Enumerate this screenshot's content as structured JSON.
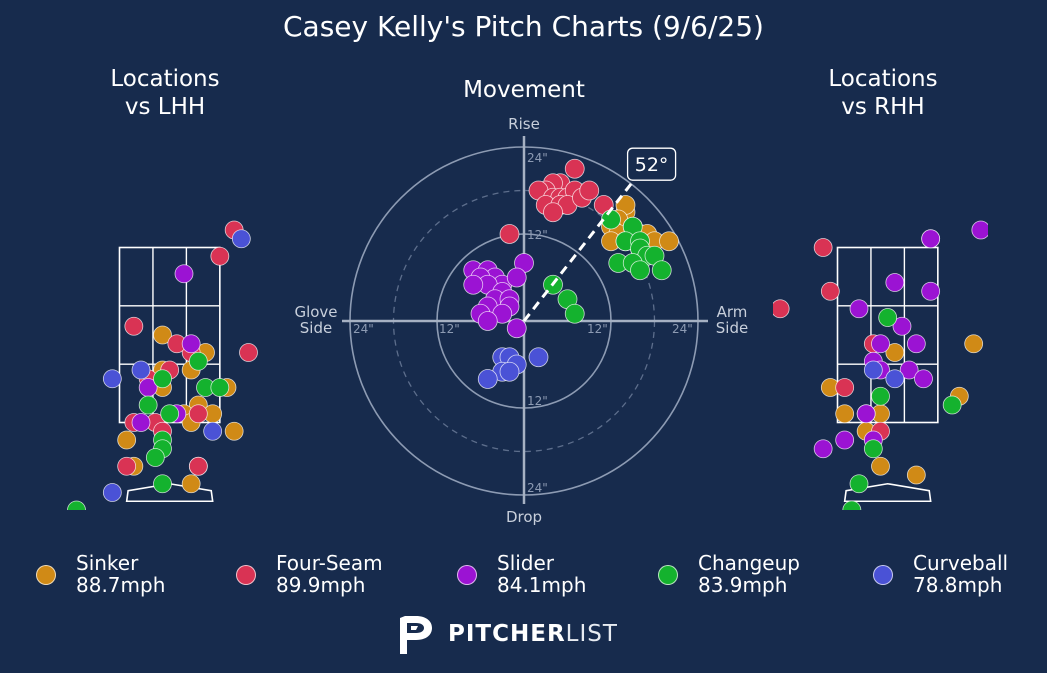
{
  "title": "Casey Kelly's Pitch Charts (9/6/25)",
  "panels": {
    "lhh_title": [
      "Locations",
      "vs LHH"
    ],
    "movement_title": "Movement",
    "rhh_title": [
      "Locations",
      "vs RHH"
    ]
  },
  "colors": {
    "background": "#172b4d",
    "Sinker": "#d08a16",
    "Four-Seam": "#d93354",
    "Slider": "#9b13d3",
    "Changeup": "#14b22e",
    "Curveball": "#4a52d6"
  },
  "legend": [
    {
      "pitch": "Sinker",
      "velo": "88.7mph"
    },
    {
      "pitch": "Four-Seam",
      "velo": "89.9mph"
    },
    {
      "pitch": "Slider",
      "velo": "84.1mph"
    },
    {
      "pitch": "Changeup",
      "velo": "83.9mph"
    },
    {
      "pitch": "Curveball",
      "velo": "78.8mph"
    }
  ],
  "movement_labels": {
    "top": "Rise",
    "bottom": "Drop",
    "left": [
      "Glove",
      "Side"
    ],
    "right": [
      "Arm",
      "Side"
    ],
    "ring_labels": [
      "12\"",
      "24\""
    ],
    "arm_angle_label": "52°"
  },
  "logo": {
    "bold": "PITCHER",
    "light": "LIST"
  },
  "chart_data": [
    {
      "type": "scatter",
      "title": "Locations vs LHH",
      "units": "feet (catcher view, x = plate side, z = height)",
      "xlim": [
        -1.6,
        1.4
      ],
      "ylim": [
        0.5,
        4.5
      ],
      "points": {
        "Sinker": [
          [
            -0.1,
            2.5
          ],
          [
            0.4,
            1.7
          ],
          [
            0.5,
            2.3
          ],
          [
            -0.1,
            2.1
          ],
          [
            -0.1,
            1.9
          ],
          [
            0.2,
            1.6
          ],
          [
            0.3,
            1.5
          ],
          [
            0.8,
            1.9
          ],
          [
            0.6,
            1.6
          ],
          [
            -0.5,
            1.0
          ],
          [
            -0.6,
            1.3
          ],
          [
            0.3,
            0.8
          ],
          [
            0.4,
            1.0
          ],
          [
            0.9,
            1.4
          ],
          [
            0.3,
            2.1
          ]
        ],
        "Four-Seam": [
          [
            0.9,
            3.7
          ],
          [
            0.7,
            3.4
          ],
          [
            -0.5,
            2.6
          ],
          [
            0.3,
            2.3
          ],
          [
            0.1,
            2.4
          ],
          [
            -0.3,
            2.0
          ],
          [
            1.1,
            2.3
          ],
          [
            0.4,
            1.6
          ],
          [
            -0.5,
            1.5
          ],
          [
            -0.2,
            1.5
          ],
          [
            0.4,
            1.0
          ],
          [
            -0.6,
            1.0
          ],
          [
            -0.1,
            1.4
          ],
          [
            0.0,
            2.1
          ]
        ],
        "Slider": [
          [
            0.2,
            3.2
          ],
          [
            0.3,
            2.4
          ],
          [
            -0.3,
            1.9
          ],
          [
            -0.4,
            1.5
          ],
          [
            0.1,
            1.6
          ]
        ],
        "Changeup": [
          [
            0.4,
            2.2
          ],
          [
            0.5,
            1.9
          ],
          [
            0.7,
            1.9
          ],
          [
            -0.1,
            2.0
          ],
          [
            -0.3,
            1.7
          ],
          [
            0.0,
            1.6
          ],
          [
            -0.1,
            1.3
          ],
          [
            -0.1,
            1.2
          ],
          [
            -0.2,
            1.1
          ],
          [
            -0.1,
            0.8
          ],
          [
            -1.3,
            0.5
          ]
        ],
        "Curveball": [
          [
            1.0,
            3.6
          ],
          [
            -0.8,
            2.0
          ],
          [
            -0.4,
            2.1
          ],
          [
            0.6,
            1.4
          ],
          [
            -0.8,
            0.7
          ]
        ]
      }
    },
    {
      "type": "scatter",
      "title": "Movement",
      "units": "inches (x: negative = glove side, positive = arm side; y: rise)",
      "radial_rings": [
        12,
        24
      ],
      "arm_angle_deg": 52,
      "points": {
        "Four-Seam": [
          [
            7,
            21
          ],
          [
            5,
            19
          ],
          [
            4,
            19
          ],
          [
            3,
            18
          ],
          [
            2,
            18
          ],
          [
            4,
            17
          ],
          [
            5,
            17
          ],
          [
            6,
            17
          ],
          [
            7,
            18
          ],
          [
            3,
            16
          ],
          [
            5,
            16
          ],
          [
            6,
            16
          ],
          [
            4,
            15
          ],
          [
            8,
            17
          ],
          [
            9,
            18
          ],
          [
            11,
            16
          ],
          [
            -2,
            12
          ]
        ],
        "Sinker": [
          [
            14,
            15
          ],
          [
            14,
            16
          ],
          [
            13,
            14
          ],
          [
            12,
            13
          ],
          [
            13,
            12
          ],
          [
            15,
            13
          ],
          [
            16,
            12
          ],
          [
            17,
            12
          ],
          [
            18,
            11
          ],
          [
            20,
            11
          ],
          [
            12,
            11
          ],
          [
            14,
            11
          ],
          [
            16,
            10
          ]
        ],
        "Changeup": [
          [
            12,
            14
          ],
          [
            15,
            13
          ],
          [
            14,
            11
          ],
          [
            16,
            11
          ],
          [
            16,
            10
          ],
          [
            17,
            9
          ],
          [
            13,
            8
          ],
          [
            15,
            8
          ],
          [
            18,
            9
          ],
          [
            19,
            7
          ],
          [
            16,
            7
          ],
          [
            4,
            5
          ],
          [
            6,
            3
          ],
          [
            7,
            1
          ]
        ],
        "Slider": [
          [
            -7,
            7
          ],
          [
            -5,
            7
          ],
          [
            -4,
            6
          ],
          [
            -6,
            6
          ],
          [
            -3,
            5
          ],
          [
            -5,
            5
          ],
          [
            -3,
            4
          ],
          [
            -4,
            3
          ],
          [
            -2,
            3
          ],
          [
            -5,
            2
          ],
          [
            -6,
            1
          ],
          [
            0,
            8
          ],
          [
            -1,
            6
          ],
          [
            -2,
            2
          ],
          [
            -7,
            5
          ],
          [
            -3,
            1
          ],
          [
            -5,
            0
          ],
          [
            -1,
            -1
          ]
        ],
        "Curveball": [
          [
            -3,
            -5
          ],
          [
            -2,
            -5
          ],
          [
            -1,
            -6
          ],
          [
            -3,
            -7
          ],
          [
            -2,
            -7
          ],
          [
            -5,
            -8
          ],
          [
            2,
            -5
          ]
        ]
      }
    },
    {
      "type": "scatter",
      "title": "Locations vs RHH",
      "units": "feet (catcher view, x = plate side, z = height)",
      "xlim": [
        -1.6,
        1.4
      ],
      "ylim": [
        0.5,
        4.5
      ],
      "points": {
        "Sinker": [
          [
            1.2,
            2.4
          ],
          [
            1.0,
            1.8
          ],
          [
            0.1,
            2.3
          ],
          [
            -0.1,
            1.6
          ],
          [
            -0.6,
            1.6
          ],
          [
            -0.3,
            1.4
          ],
          [
            -0.8,
            1.9
          ],
          [
            -0.1,
            1.0
          ],
          [
            0.4,
            0.9
          ]
        ],
        "Four-Seam": [
          [
            -0.9,
            3.5
          ],
          [
            0.6,
            3.6
          ],
          [
            -0.6,
            1.9
          ],
          [
            -0.2,
            2.4
          ],
          [
            -0.3,
            1.6
          ],
          [
            -0.8,
            3.0
          ],
          [
            -1.5,
            2.8
          ],
          [
            -0.1,
            1.4
          ]
        ],
        "Slider": [
          [
            1.3,
            3.7
          ],
          [
            0.6,
            3.6
          ],
          [
            0.1,
            3.1
          ],
          [
            0.6,
            3.0
          ],
          [
            -0.4,
            2.8
          ],
          [
            0.2,
            2.6
          ],
          [
            0.4,
            2.4
          ],
          [
            -0.1,
            2.4
          ],
          [
            -0.2,
            2.2
          ],
          [
            -0.1,
            2.1
          ],
          [
            0.3,
            2.1
          ],
          [
            -0.3,
            1.6
          ],
          [
            0.5,
            2.0
          ],
          [
            -0.2,
            1.3
          ],
          [
            -0.9,
            1.2
          ],
          [
            -0.6,
            1.3
          ]
        ],
        "Changeup": [
          [
            0.0,
            2.7
          ],
          [
            -0.1,
            1.8
          ],
          [
            -0.2,
            1.2
          ],
          [
            0.9,
            1.7
          ],
          [
            -0.4,
            0.8
          ],
          [
            -0.5,
            0.5
          ]
        ],
        "Curveball": [
          [
            0.1,
            2.0
          ],
          [
            -0.2,
            2.1
          ]
        ]
      }
    }
  ]
}
